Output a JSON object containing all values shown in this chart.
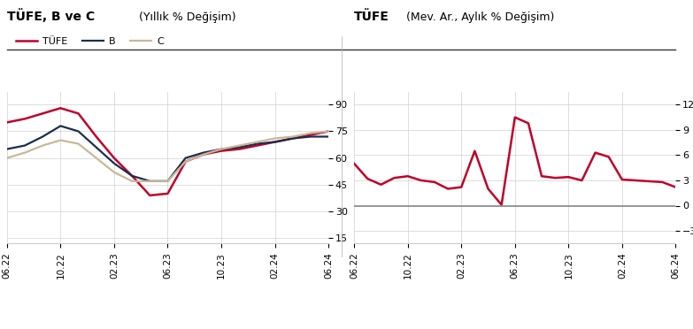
{
  "left_title1": "TÜFE, B ve C",
  "left_title2": "(Yıllık % Değişim)",
  "right_title1": "TÜFE",
  "right_title2": "(Mev. Ar., Aylık % Değişim)",
  "left_yticks": [
    15,
    30,
    45,
    60,
    75,
    90
  ],
  "left_ylim": [
    12,
    97
  ],
  "right_yticks": [
    -3,
    0,
    3,
    6,
    9,
    12
  ],
  "right_ylim": [
    -4.5,
    13.5
  ],
  "xtick_labels": [
    "06.22",
    "10.22",
    "02.23",
    "06.23",
    "10.23",
    "02.24",
    "06.24"
  ],
  "tufe_left": [
    80,
    82,
    85,
    88,
    85,
    72,
    60,
    50,
    39,
    40,
    58,
    62,
    64,
    65,
    67,
    69,
    71,
    73,
    75
  ],
  "b_left": [
    65,
    67,
    72,
    78,
    75,
    66,
    57,
    50,
    47,
    47,
    60,
    63,
    65,
    66,
    68,
    69,
    71,
    72,
    72
  ],
  "c_left": [
    60,
    63,
    67,
    70,
    68,
    60,
    52,
    47,
    47,
    47,
    58,
    62,
    65,
    67,
    69,
    71,
    72,
    74,
    75
  ],
  "tufe_right": [
    5.0,
    3.2,
    2.5,
    3.3,
    3.5,
    3.0,
    2.8,
    2.0,
    2.2,
    6.5,
    2.0,
    0.1,
    10.5,
    9.8,
    3.5,
    3.3,
    3.4,
    3.0,
    6.3,
    5.8,
    3.1,
    3.0,
    2.9,
    2.8,
    2.2
  ],
  "line_color_tufe": "#c0002a",
  "line_color_b": "#1c2d4e",
  "line_color_c": "#c8b89a",
  "background_color": "#ffffff",
  "grid_color": "#d0d0d0",
  "zero_line_color": "#888888",
  "border_color": "#cccccc"
}
